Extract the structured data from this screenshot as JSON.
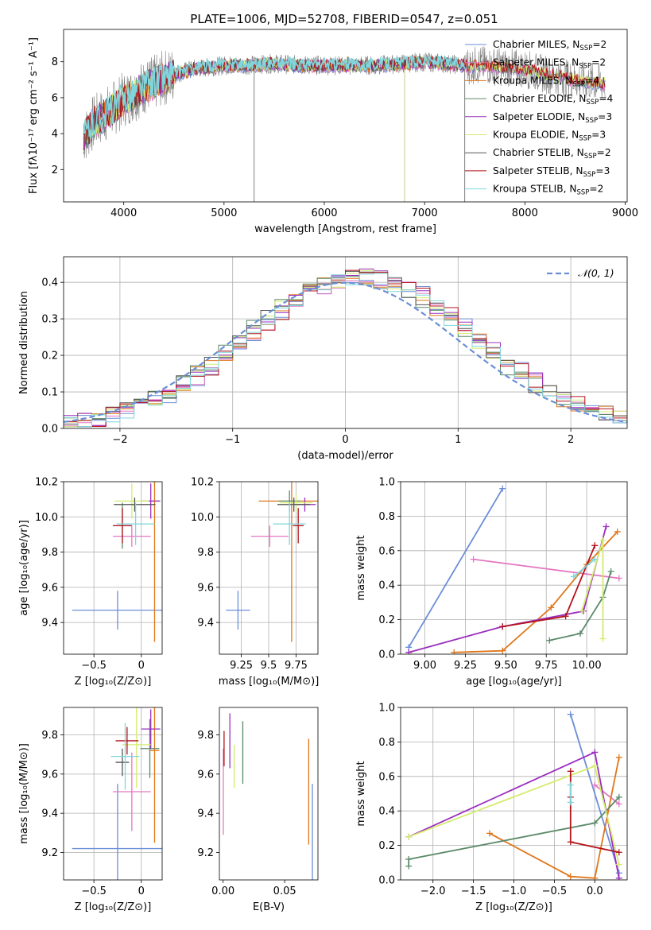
{
  "title": "PLATE=1006, MJD=52708, FIBERID=0547, z=0.051",
  "colors": {
    "c1": "#6b8ed8",
    "c2": "#e377c2",
    "c3": "#e0761a",
    "c4": "#5a8a68",
    "c5": "#9b2fc0",
    "c6": "#d4ec6e",
    "c7": "#555555",
    "c8": "#b3131b",
    "c9": "#7fd6dc",
    "observed": "#808080",
    "grid": "#b0b0b0",
    "gauss": "#6a8fd6"
  },
  "chart_data": [
    {
      "id": "spectrum",
      "type": "line",
      "xlabel": "wavelength [Angstrom, rest frame]",
      "ylabel": "Flux [fλ10⁻¹⁷ erg cm⁻² s⁻¹ A⁻¹]",
      "xlim": [
        3400,
        9020
      ],
      "ylim": [
        0.2,
        9.8
      ],
      "xticks": [
        4000,
        5000,
        6000,
        7000,
        8000,
        9000
      ],
      "yticks": [
        2,
        4,
        6,
        8
      ],
      "grid": false,
      "legend": "upper right",
      "continuum": {
        "x": [
          3600,
          3700,
          3800,
          3900,
          4000,
          4100,
          4200,
          4300,
          4400,
          4500,
          4700,
          5000,
          5200,
          5500,
          5800,
          6000,
          6200,
          6500,
          6800,
          7000,
          7200,
          7400,
          7600,
          7800,
          8000,
          8200,
          8400,
          8600,
          8800
        ],
        "y": [
          3.8,
          4.6,
          5.0,
          5.4,
          5.9,
          6.2,
          6.6,
          6.8,
          7.1,
          7.3,
          7.6,
          7.8,
          7.8,
          7.9,
          7.8,
          7.8,
          7.8,
          7.8,
          7.9,
          8.0,
          7.9,
          7.8,
          7.8,
          7.7,
          7.6,
          7.3,
          7.1,
          6.9,
          6.8
        ]
      },
      "series": [
        {
          "name": "Chabrier MILES, N_SSP=2",
          "label": "Chabrier MILES, N",
          "sub": "SSP",
          "tail": "=2",
          "color": "#6b8ed8"
        },
        {
          "name": "Salpeter MILES, N_SSP=2",
          "label": "Salpeter MILES, N",
          "sub": "SSP",
          "tail": "=2",
          "color": "#e377c2"
        },
        {
          "name": "Kroupa MILES, N_SSP=4",
          "label": "Kroupa MILES, N",
          "sub": "SSP",
          "tail": "=4",
          "color": "#e0761a"
        },
        {
          "name": "Chabrier ELODIE, N_SSP=4",
          "label": "Chabrier ELODIE, N",
          "sub": "SSP",
          "tail": "=4",
          "color": "#5a8a68"
        },
        {
          "name": "Salpeter ELODIE, N_SSP=3",
          "label": "Salpeter ELODIE, N",
          "sub": "SSP",
          "tail": "=3",
          "color": "#9b2fc0"
        },
        {
          "name": "Kroupa ELODIE, N_SSP=3",
          "label": "Kroupa ELODIE, N",
          "sub": "SSP",
          "tail": "=3",
          "color": "#d4ec6e"
        },
        {
          "name": "Chabrier STELIB, N_SSP=2",
          "label": "Chabrier STELIB, N",
          "sub": "SSP",
          "tail": "=2",
          "color": "#555555"
        },
        {
          "name": "Salpeter STELIB, N_SSP=3",
          "label": "Salpeter STELIB, N",
          "sub": "SSP",
          "tail": "=3",
          "color": "#b3131b"
        },
        {
          "name": "Kroupa STELIB, N_SSP=2",
          "label": "Kroupa STELIB, N",
          "sub": "SSP",
          "tail": "=2",
          "color": "#7fd6dc"
        }
      ]
    },
    {
      "id": "residuals",
      "type": "histogram",
      "xlabel": "(data-model)/error",
      "ylabel": "Normed distribution",
      "xlim": [
        -2.5,
        2.5
      ],
      "ylim": [
        0,
        0.47
      ],
      "xticks": [
        -2,
        -1,
        0,
        1,
        2
      ],
      "yticks": [
        0.0,
        0.1,
        0.2,
        0.3,
        0.4
      ],
      "grid": true,
      "legend": "upper right",
      "gauss_label": "𝒩(0, 1)",
      "bins": 40
    },
    {
      "id": "age_vs_Z",
      "type": "scatter",
      "xlabel": "Z [log₁₀(Z/Z⊙)]",
      "ylabel": "age  [log₁₀(age/yr)]",
      "xlim": [
        -0.82,
        0.22
      ],
      "ylim": [
        9.22,
        10.2
      ],
      "xticks": [
        -0.5,
        0.0
      ],
      "yticks": [
        9.4,
        9.6,
        9.8,
        10.0,
        10.2
      ],
      "grid": true,
      "points": [
        {
          "color": "#6b8ed8",
          "x": -0.25,
          "y": 9.47,
          "xerr": 0.48,
          "yerr": 0.11
        },
        {
          "color": "#e377c2",
          "x": -0.1,
          "y": 9.89,
          "xerr": 0.2,
          "yerr": 0.06
        },
        {
          "color": "#e0761a",
          "x": 0.14,
          "y": 10.09,
          "xerr": 0.05,
          "yerr": 0.8
        },
        {
          "color": "#5a8a68",
          "x": -0.2,
          "y": 9.95,
          "xerr": 0.1,
          "yerr": 0.13
        },
        {
          "color": "#9b2fc0",
          "x": 0.1,
          "y": 10.09,
          "xerr": 0.1,
          "yerr": 0.1
        },
        {
          "color": "#d4ec6e",
          "x": -0.1,
          "y": 10.09,
          "xerr": 0.18,
          "yerr": 0.1
        },
        {
          "color": "#555555",
          "x": -0.07,
          "y": 10.07,
          "xerr": 0.22,
          "yerr": 0.04
        },
        {
          "color": "#b3131b",
          "x": -0.2,
          "y": 9.95,
          "xerr": 0.1,
          "yerr": 0.1
        },
        {
          "color": "#7fd6dc",
          "x": -0.06,
          "y": 9.96,
          "xerr": 0.2,
          "yerr": 0.12
        }
      ]
    },
    {
      "id": "age_vs_mass",
      "type": "scatter",
      "xlabel": "mass [log₁₀(M/M⊙)]",
      "ylabel": "",
      "xlim": [
        9.05,
        9.95
      ],
      "ylim": [
        9.22,
        10.2
      ],
      "xticks": [
        9.25,
        9.5,
        9.75
      ],
      "yticks": [
        9.4,
        9.6,
        9.8,
        10.0,
        10.2
      ],
      "grid": true,
      "points": [
        {
          "color": "#6b8ed8",
          "x": 9.22,
          "y": 9.47,
          "xerr": 0.11,
          "yerr": 0.11
        },
        {
          "color": "#e377c2",
          "x": 9.51,
          "y": 9.89,
          "xerr": 0.17,
          "yerr": 0.06
        },
        {
          "color": "#e0761a",
          "x": 9.71,
          "y": 10.09,
          "xerr": 0.3,
          "yerr": 0.8
        },
        {
          "color": "#5a8a68",
          "x": 9.69,
          "y": 10.09,
          "xerr": 0.1,
          "yerr": 0.06
        },
        {
          "color": "#9b2fc0",
          "x": 9.83,
          "y": 10.07,
          "xerr": 0.1,
          "yerr": 0.04
        },
        {
          "color": "#d4ec6e",
          "x": 9.75,
          "y": 10.08,
          "xerr": 0.15,
          "yerr": 0.05
        },
        {
          "color": "#555555",
          "x": 9.73,
          "y": 10.07,
          "xerr": 0.15,
          "yerr": 0.04
        },
        {
          "color": "#b3131b",
          "x": 9.77,
          "y": 9.95,
          "xerr": 0.05,
          "yerr": 0.1
        },
        {
          "color": "#7fd6dc",
          "x": 9.69,
          "y": 9.96,
          "xerr": 0.15,
          "yerr": 0.12
        }
      ]
    },
    {
      "id": "weight_vs_age",
      "type": "line",
      "xlabel": "age  [log₁₀(age/yr)]",
      "ylabel": "mass weight",
      "xlim": [
        8.85,
        10.25
      ],
      "ylim": [
        0,
        1.0
      ],
      "xticks": [
        9.0,
        9.25,
        9.5,
        9.75,
        10.0
      ],
      "xticklabels": [
        "9.00",
        "9.25",
        "9.50",
        "9.75",
        "10.00"
      ],
      "yticks": [
        0.0,
        0.2,
        0.4,
        0.6,
        0.8,
        1.0
      ],
      "grid": true,
      "series": [
        {
          "color": "#6b8ed8",
          "x": [
            8.9,
            9.48
          ],
          "y": [
            0.04,
            0.96
          ]
        },
        {
          "color": "#e377c2",
          "x": [
            9.3,
            10.2
          ],
          "y": [
            0.55,
            0.44
          ]
        },
        {
          "color": "#e0761a",
          "x": [
            9.18,
            9.48,
            9.78,
            10.0,
            10.19
          ],
          "y": [
            0.01,
            0.02,
            0.27,
            0.52,
            0.71
          ]
        },
        {
          "color": "#5a8a68",
          "x": [
            9.77,
            9.96,
            10.1,
            10.15
          ],
          "y": [
            0.08,
            0.12,
            0.33,
            0.48
          ]
        },
        {
          "color": "#9b2fc0",
          "x": [
            8.9,
            9.48,
            9.98,
            10.12
          ],
          "y": [
            0.01,
            0.16,
            0.25,
            0.74
          ]
        },
        {
          "color": "#d4ec6e",
          "x": [
            9.97,
            10.1,
            10.1
          ],
          "y": [
            0.25,
            0.66,
            0.09
          ]
        },
        {
          "color": "#b3131b",
          "x": [
            9.48,
            9.87,
            10.05
          ],
          "y": [
            0.16,
            0.22,
            0.63
          ]
        },
        {
          "color": "#7fd6dc",
          "x": [
            9.92,
            10.05
          ],
          "y": [
            0.45,
            0.55
          ]
        }
      ]
    },
    {
      "id": "mass_vs_Z",
      "type": "scatter",
      "xlabel": "Z [log₁₀(Z/Z⊙)]",
      "ylabel": "mass [log₁₀(M/M⊙)]",
      "xlim": [
        -0.82,
        0.22
      ],
      "ylim": [
        9.06,
        9.94
      ],
      "xticks": [
        -0.5,
        0.0
      ],
      "yticks": [
        9.2,
        9.4,
        9.6,
        9.8
      ],
      "grid": true,
      "points": [
        {
          "color": "#6b8ed8",
          "x": -0.25,
          "y": 9.22,
          "xerr": 0.48,
          "yerr": 0.33
        },
        {
          "color": "#e377c2",
          "x": -0.1,
          "y": 9.51,
          "xerr": 0.2,
          "yerr": 0.2
        },
        {
          "color": "#e0761a",
          "x": 0.14,
          "y": 9.72,
          "xerr": 0.05,
          "yerr": 0.47
        },
        {
          "color": "#5a8a68",
          "x": 0.09,
          "y": 9.73,
          "xerr": 0.1,
          "yerr": 0.15
        },
        {
          "color": "#9b2fc0",
          "x": 0.1,
          "y": 9.83,
          "xerr": 0.1,
          "yerr": 0.1
        },
        {
          "color": "#d4ec6e",
          "x": -0.05,
          "y": 9.75,
          "xerr": 0.15,
          "yerr": 0.22
        },
        {
          "color": "#555555",
          "x": -0.2,
          "y": 9.66,
          "xerr": 0.07,
          "yerr": 0.07
        },
        {
          "color": "#b3131b",
          "x": -0.15,
          "y": 9.77,
          "xerr": 0.12,
          "yerr": 0.07
        },
        {
          "color": "#7fd6dc",
          "x": -0.17,
          "y": 9.69,
          "xerr": 0.15,
          "yerr": 0.17
        }
      ]
    },
    {
      "id": "mass_vs_ebv",
      "type": "scatter",
      "xlabel": "E(B-V)",
      "ylabel": "",
      "xlim": [
        -0.003,
        0.077
      ],
      "ylim": [
        9.06,
        9.94
      ],
      "xticks": [
        0.0,
        0.05
      ],
      "xticklabels": [
        "0.00",
        "0.05"
      ],
      "yticks": [
        9.2,
        9.4,
        9.6,
        9.8
      ],
      "grid": false,
      "points": [
        {
          "color": "#6b8ed8",
          "x": 0.0725,
          "y": 9.22,
          "xerr": 0,
          "yerr": 0.33
        },
        {
          "color": "#e377c2",
          "x": 0.0002,
          "y": 9.51,
          "xerr": 0,
          "yerr": 0.22
        },
        {
          "color": "#e0761a",
          "x": 0.0695,
          "y": 9.51,
          "xerr": 0,
          "yerr": 0.27
        },
        {
          "color": "#5a8a68",
          "x": 0.016,
          "y": 9.71,
          "xerr": 0,
          "yerr": 0.16
        },
        {
          "color": "#9b2fc0",
          "x": 0.0055,
          "y": 9.77,
          "xerr": 0,
          "yerr": 0.14
        },
        {
          "color": "#d4ec6e",
          "x": 0.009,
          "y": 9.64,
          "xerr": 0,
          "yerr": 0.11
        },
        {
          "color": "#b3131b",
          "x": 0.0008,
          "y": 9.73,
          "xerr": 0,
          "yerr": 0.09
        }
      ]
    },
    {
      "id": "weight_vs_Z",
      "type": "line",
      "xlabel": "Z [log₁₀(Z/Z⊙)]",
      "ylabel": "mass weight",
      "xlim": [
        -2.4,
        0.4
      ],
      "ylim": [
        0,
        1.0
      ],
      "xticks": [
        -2.0,
        -1.5,
        -1.0,
        -0.5,
        0.0
      ],
      "xticklabels": [
        "−2.0",
        "−1.5",
        "−1.0",
        "−0.5",
        "0.0"
      ],
      "yticks": [
        0.0,
        0.2,
        0.4,
        0.6,
        0.8,
        1.0
      ],
      "grid": true,
      "series": [
        {
          "color": "#6b8ed8",
          "x": [
            -0.3,
            0.3
          ],
          "y": [
            0.96,
            0.04
          ]
        },
        {
          "color": "#e377c2",
          "x": [
            0.0,
            0.3
          ],
          "y": [
            0.55,
            0.44
          ]
        },
        {
          "color": "#e0761a",
          "x": [
            -1.3,
            -0.3,
            0.0,
            0.3
          ],
          "y": [
            0.27,
            0.02,
            0.01,
            0.71
          ]
        },
        {
          "color": "#5a8a68",
          "x": [
            -2.3,
            -2.3,
            0.0,
            0.3
          ],
          "y": [
            0.08,
            0.12,
            0.33,
            0.48
          ]
        },
        {
          "color": "#9b2fc0",
          "x": [
            -2.3,
            0.0,
            0.3
          ],
          "y": [
            0.25,
            0.74,
            0.01
          ]
        },
        {
          "color": "#d4ec6e",
          "x": [
            -2.3,
            0.0,
            0.3
          ],
          "y": [
            0.25,
            0.66,
            0.09
          ]
        },
        {
          "color": "#b3131b",
          "x": [
            -0.3,
            -0.3,
            -0.3,
            0.3
          ],
          "y": [
            0.63,
            0.48,
            0.22,
            0.16
          ]
        },
        {
          "color": "#7fd6dc",
          "x": [
            -0.3,
            -0.3
          ],
          "y": [
            0.45,
            0.55
          ]
        }
      ]
    }
  ]
}
